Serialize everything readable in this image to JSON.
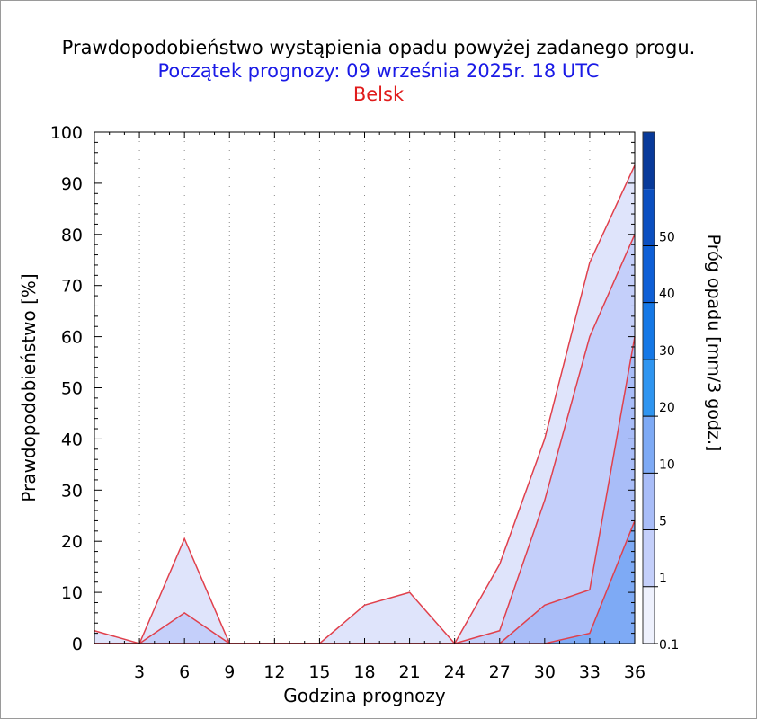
{
  "chart_data": {
    "type": "area",
    "title": "Prawdopodobieństwo wystąpienia opadu powyżej zadanego progu.",
    "subtitle": "Początek prognozy: 09 września 2025r. 18 UTC",
    "location": "Belsk",
    "xlabel": "Godzina prognozy",
    "ylabel": "Prawdopodobieństwo [%]",
    "xlim": [
      0,
      36
    ],
    "ylim": [
      0,
      100
    ],
    "x_ticks": [
      3,
      6,
      9,
      12,
      15,
      18,
      21,
      24,
      27,
      30,
      33,
      36
    ],
    "y_ticks": [
      0,
      10,
      20,
      30,
      40,
      50,
      60,
      70,
      80,
      90,
      100
    ],
    "x": [
      0,
      3,
      6,
      9,
      12,
      15,
      18,
      21,
      24,
      27,
      30,
      33,
      36
    ],
    "series": [
      {
        "threshold": "0.1",
        "color": "#dfe4fb",
        "values": [
          2.5,
          0,
          20.5,
          0,
          0,
          0,
          7.5,
          10,
          0,
          15.5,
          40,
          74.5,
          93.5
        ]
      },
      {
        "threshold": "1",
        "color": "#c4cffa",
        "values": [
          0,
          0,
          6,
          0,
          0,
          0,
          0,
          0,
          0,
          2.5,
          28,
          60,
          80
        ]
      },
      {
        "threshold": "5",
        "color": "#a9bdf8",
        "values": [
          0,
          0,
          0,
          0,
          0,
          0,
          0,
          0,
          0,
          0,
          7.5,
          10.5,
          60
        ]
      },
      {
        "threshold": "10",
        "color": "#7eaaf5",
        "values": [
          0,
          0,
          0,
          0,
          0,
          0,
          0,
          0,
          0,
          0,
          0,
          2,
          24
        ]
      }
    ],
    "line_color": "#e0404c",
    "colorbar": {
      "label": "Próg opadu [mm/3 godz.]",
      "labels": [
        "0.1",
        "1",
        "5",
        "10",
        "20",
        "30",
        "40",
        "50"
      ],
      "colors": [
        "#eef1fd",
        "#c4cffa",
        "#a9bdf8",
        "#7eaaf5",
        "#2f95f0",
        "#1578e6",
        "#0e5fd6",
        "#0b4fc0",
        "#083a9a"
      ]
    }
  }
}
